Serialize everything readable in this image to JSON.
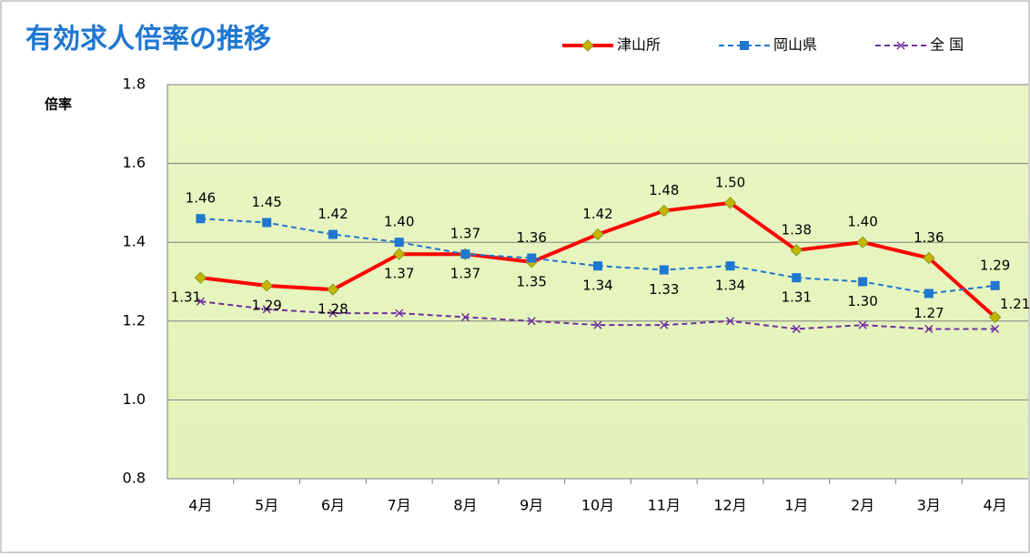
{
  "chart_data": {
    "type": "line",
    "title": "有効求人倍率の推移",
    "y_label": "倍率",
    "categories": [
      "4月",
      "5月",
      "6月",
      "7月",
      "8月",
      "9月",
      "10月",
      "11月",
      "12月",
      "1月",
      "2月",
      "3月",
      "4月"
    ],
    "series": [
      {
        "name": "津山所",
        "color": "#ff0000",
        "marker": "diamond",
        "dash": false,
        "labels": true,
        "values": [
          1.31,
          1.29,
          1.28,
          1.37,
          1.37,
          1.35,
          1.42,
          1.48,
          1.5,
          1.38,
          1.4,
          1.36,
          1.21
        ],
        "value_labels": [
          "1.31",
          "1.29",
          "1.28",
          "1.37",
          "1.37",
          "1.35",
          "1.42",
          "1.48",
          "1.50",
          "1.38",
          "1.40",
          "1.36",
          "1.21"
        ]
      },
      {
        "name": "岡山県",
        "color": "#1f77d0",
        "marker": "square",
        "dash": true,
        "labels": true,
        "values": [
          1.46,
          1.45,
          1.42,
          1.4,
          1.37,
          1.36,
          1.34,
          1.33,
          1.34,
          1.31,
          1.3,
          1.27,
          1.29
        ],
        "value_labels": [
          "1.46",
          "1.45",
          "1.42",
          "1.40",
          "1.37",
          "1.36",
          "1.34",
          "1.33",
          "1.34",
          "1.31",
          "1.30",
          "1.27",
          "1.29"
        ]
      },
      {
        "name": "全 国",
        "color": "#7030a0",
        "marker": "x",
        "dash": true,
        "labels": false,
        "values": [
          1.25,
          1.23,
          1.22,
          1.22,
          1.21,
          1.2,
          1.19,
          1.19,
          1.2,
          1.18,
          1.19,
          1.18,
          1.18
        ]
      }
    ],
    "ylim": [
      0.8,
      1.8
    ],
    "yticks": [
      0.8,
      {
        "value": 1,
        "label": "1.0"
      },
      1.2,
      1.4,
      1.6,
      1.8
    ],
    "grid": true,
    "legend": "top-right"
  }
}
